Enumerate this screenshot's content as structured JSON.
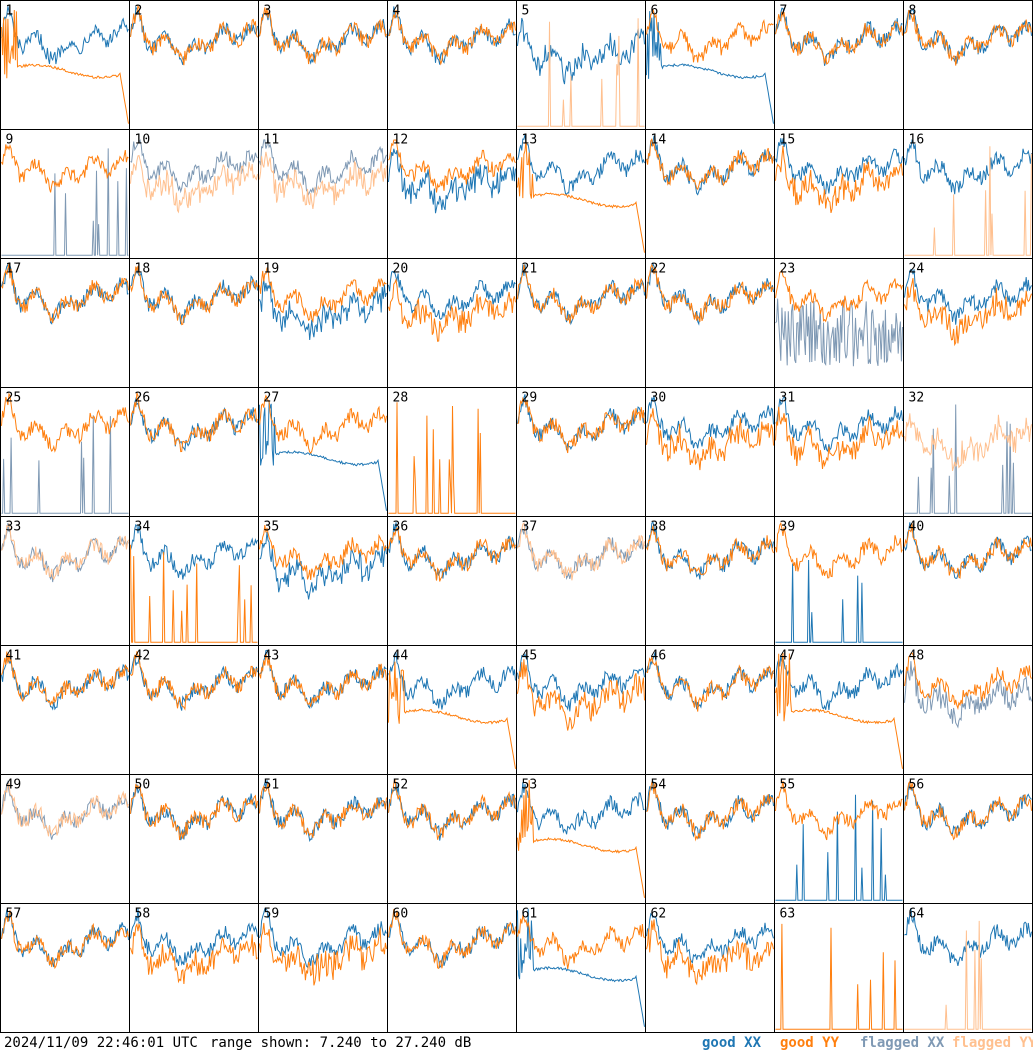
{
  "footer": {
    "timestamp": "2024/11/09 22:46:01 UTC",
    "range": "range shown: 7.240 to 27.240 dB",
    "legend": [
      "good XX",
      "good YY",
      "flagged XX",
      "flagged YY"
    ]
  },
  "colors": {
    "good_xx": "#1f77b4",
    "good_yy": "#ff7f0e",
    "flagged_xx": "#7f99b4",
    "flagged_yy": "#ffc08f"
  },
  "chart_data": {
    "type": "line",
    "title": "",
    "ylim": [
      7.24,
      27.24
    ],
    "yunit": "dB",
    "grid": "8x8",
    "tiles": [
      {
        "id": "1",
        "xx": "good",
        "yy": "good",
        "xx_style": "normal",
        "yy_style": "drop"
      },
      {
        "id": "2",
        "xx": "good",
        "yy": "good",
        "xx_style": "normal",
        "yy_style": "normal"
      },
      {
        "id": "3",
        "xx": "good",
        "yy": "good",
        "xx_style": "normal",
        "yy_style": "normal"
      },
      {
        "id": "4",
        "xx": "good",
        "yy": "good",
        "xx_style": "normal",
        "yy_style": "normal"
      },
      {
        "id": "5",
        "xx": "good",
        "yy": "flagged",
        "xx_style": "low",
        "yy_style": "spikes"
      },
      {
        "id": "6",
        "xx": "good",
        "yy": "good",
        "xx_style": "drop",
        "yy_style": "normal"
      },
      {
        "id": "7",
        "xx": "good",
        "yy": "good",
        "xx_style": "normal",
        "yy_style": "normal"
      },
      {
        "id": "8",
        "xx": "good",
        "yy": "good",
        "xx_style": "normal",
        "yy_style": "normal"
      },
      {
        "id": "9",
        "xx": "flagged",
        "yy": "good",
        "xx_style": "spikes",
        "yy_style": "normal"
      },
      {
        "id": "10",
        "xx": "flagged",
        "yy": "flagged",
        "xx_style": "normal",
        "yy_style": "low"
      },
      {
        "id": "11",
        "xx": "flagged",
        "yy": "flagged",
        "xx_style": "normal",
        "yy_style": "low"
      },
      {
        "id": "12",
        "xx": "good",
        "yy": "good",
        "xx_style": "low",
        "yy_style": "normal"
      },
      {
        "id": "13",
        "xx": "good",
        "yy": "good",
        "xx_style": "normal",
        "yy_style": "drop"
      },
      {
        "id": "14",
        "xx": "good",
        "yy": "good",
        "xx_style": "normal",
        "yy_style": "normal"
      },
      {
        "id": "15",
        "xx": "good",
        "yy": "good",
        "xx_style": "normal",
        "yy_style": "low"
      },
      {
        "id": "16",
        "xx": "good",
        "yy": "flagged",
        "xx_style": "normal",
        "yy_style": "spikes"
      },
      {
        "id": "17",
        "xx": "good",
        "yy": "good",
        "xx_style": "normal",
        "yy_style": "normal"
      },
      {
        "id": "18",
        "xx": "good",
        "yy": "good",
        "xx_style": "normal",
        "yy_style": "normal"
      },
      {
        "id": "19",
        "xx": "good",
        "yy": "good",
        "xx_style": "low",
        "yy_style": "normal"
      },
      {
        "id": "20",
        "xx": "good",
        "yy": "good",
        "xx_style": "normal",
        "yy_style": "low"
      },
      {
        "id": "21",
        "xx": "good",
        "yy": "good",
        "xx_style": "normal",
        "yy_style": "normal"
      },
      {
        "id": "22",
        "xx": "good",
        "yy": "good",
        "xx_style": "normal",
        "yy_style": "normal"
      },
      {
        "id": "23",
        "xx": "flagged",
        "yy": "good",
        "xx_style": "noisy",
        "yy_style": "normal"
      },
      {
        "id": "24",
        "xx": "good",
        "yy": "good",
        "xx_style": "normal",
        "yy_style": "low"
      },
      {
        "id": "25",
        "xx": "flagged",
        "yy": "good",
        "xx_style": "spikes",
        "yy_style": "normal"
      },
      {
        "id": "26",
        "xx": "good",
        "yy": "good",
        "xx_style": "normal",
        "yy_style": "normal"
      },
      {
        "id": "27",
        "xx": "good",
        "yy": "good",
        "xx_style": "drop",
        "yy_style": "normal"
      },
      {
        "id": "28",
        "xx": "none",
        "yy": "good",
        "xx_style": "none",
        "yy_style": "spikes"
      },
      {
        "id": "29",
        "xx": "good",
        "yy": "good",
        "xx_style": "normal",
        "yy_style": "normal"
      },
      {
        "id": "30",
        "xx": "good",
        "yy": "good",
        "xx_style": "normal",
        "yy_style": "low"
      },
      {
        "id": "31",
        "xx": "good",
        "yy": "good",
        "xx_style": "normal",
        "yy_style": "low"
      },
      {
        "id": "32",
        "xx": "flagged",
        "yy": "flagged",
        "xx_style": "spikes",
        "yy_style": "low"
      },
      {
        "id": "33",
        "xx": "flagged",
        "yy": "flagged",
        "xx_style": "normal",
        "yy_style": "normal"
      },
      {
        "id": "34",
        "xx": "good",
        "yy": "good",
        "xx_style": "normal",
        "yy_style": "spikes"
      },
      {
        "id": "35",
        "xx": "good",
        "yy": "good",
        "xx_style": "low",
        "yy_style": "normal"
      },
      {
        "id": "36",
        "xx": "good",
        "yy": "good",
        "xx_style": "normal",
        "yy_style": "normal"
      },
      {
        "id": "37",
        "xx": "flagged",
        "yy": "flagged",
        "xx_style": "normal",
        "yy_style": "normal"
      },
      {
        "id": "38",
        "xx": "good",
        "yy": "good",
        "xx_style": "normal",
        "yy_style": "normal"
      },
      {
        "id": "39",
        "xx": "good",
        "yy": "good",
        "xx_style": "spikes",
        "yy_style": "normal"
      },
      {
        "id": "40",
        "xx": "good",
        "yy": "good",
        "xx_style": "normal",
        "yy_style": "normal"
      },
      {
        "id": "41",
        "xx": "good",
        "yy": "good",
        "xx_style": "normal",
        "yy_style": "normal"
      },
      {
        "id": "42",
        "xx": "good",
        "yy": "good",
        "xx_style": "normal",
        "yy_style": "normal"
      },
      {
        "id": "43",
        "xx": "good",
        "yy": "good",
        "xx_style": "normal",
        "yy_style": "normal"
      },
      {
        "id": "44",
        "xx": "good",
        "yy": "good",
        "xx_style": "normal",
        "yy_style": "drop"
      },
      {
        "id": "45",
        "xx": "good",
        "yy": "good",
        "xx_style": "normal",
        "yy_style": "low"
      },
      {
        "id": "46",
        "xx": "good",
        "yy": "good",
        "xx_style": "normal",
        "yy_style": "normal"
      },
      {
        "id": "47",
        "xx": "good",
        "yy": "good",
        "xx_style": "normal",
        "yy_style": "drop"
      },
      {
        "id": "48",
        "xx": "flagged",
        "yy": "good",
        "xx_style": "low",
        "yy_style": "normal"
      },
      {
        "id": "49",
        "xx": "flagged",
        "yy": "flagged",
        "xx_style": "normal",
        "yy_style": "normal"
      },
      {
        "id": "50",
        "xx": "good",
        "yy": "good",
        "xx_style": "normal",
        "yy_style": "normal"
      },
      {
        "id": "51",
        "xx": "good",
        "yy": "good",
        "xx_style": "normal",
        "yy_style": "normal"
      },
      {
        "id": "52",
        "xx": "good",
        "yy": "good",
        "xx_style": "normal",
        "yy_style": "normal"
      },
      {
        "id": "53",
        "xx": "good",
        "yy": "good",
        "xx_style": "normal",
        "yy_style": "drop"
      },
      {
        "id": "54",
        "xx": "good",
        "yy": "good",
        "xx_style": "normal",
        "yy_style": "normal"
      },
      {
        "id": "55",
        "xx": "good",
        "yy": "good",
        "xx_style": "spikes",
        "yy_style": "normal"
      },
      {
        "id": "56",
        "xx": "good",
        "yy": "good",
        "xx_style": "normal",
        "yy_style": "normal"
      },
      {
        "id": "57",
        "xx": "good",
        "yy": "good",
        "xx_style": "normal",
        "yy_style": "normal"
      },
      {
        "id": "58",
        "xx": "good",
        "yy": "good",
        "xx_style": "normal",
        "yy_style": "low"
      },
      {
        "id": "59",
        "xx": "good",
        "yy": "good",
        "xx_style": "normal",
        "yy_style": "low"
      },
      {
        "id": "60",
        "xx": "good",
        "yy": "good",
        "xx_style": "normal",
        "yy_style": "normal"
      },
      {
        "id": "61",
        "xx": "good",
        "yy": "good",
        "xx_style": "drop",
        "yy_style": "normal"
      },
      {
        "id": "62",
        "xx": "good",
        "yy": "good",
        "xx_style": "normal",
        "yy_style": "low"
      },
      {
        "id": "63",
        "xx": "none",
        "yy": "good",
        "xx_style": "none",
        "yy_style": "spikes"
      },
      {
        "id": "64",
        "xx": "good",
        "yy": "flagged",
        "xx_style": "normal",
        "yy_style": "spikes"
      }
    ]
  }
}
